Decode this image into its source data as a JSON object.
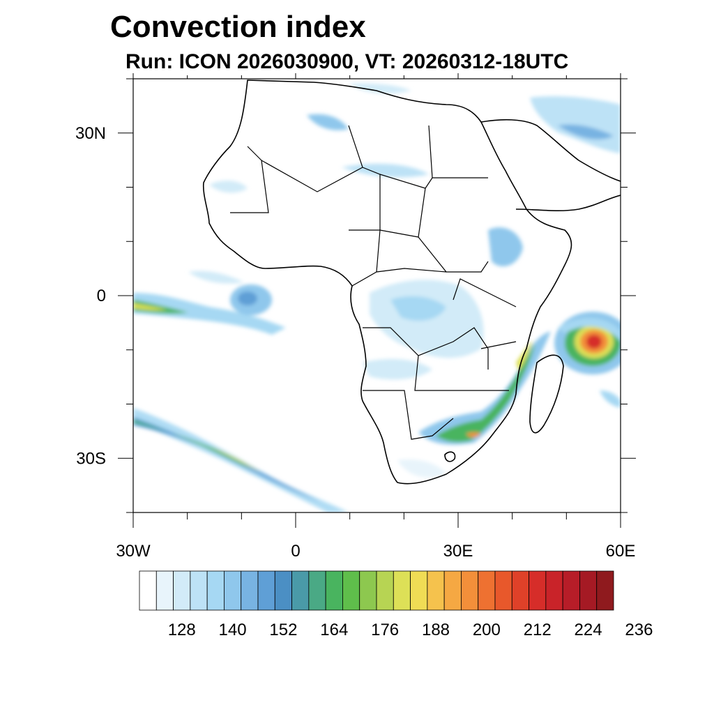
{
  "title": "Convection index",
  "subtitle": "Run: ICON 2026030900,  VT: 20260312-18UTC",
  "chart_data": {
    "type": "heatmap",
    "title": "Convection index",
    "subtitle": "Run: ICON 2026030900,  VT: 20260312-18UTC",
    "x_range": [
      -30,
      60
    ],
    "y_range": [
      -40,
      40
    ],
    "x_tick_labels": [
      {
        "value": -30,
        "label": "30W"
      },
      {
        "value": 0,
        "label": "0"
      },
      {
        "value": 30,
        "label": "30E"
      },
      {
        "value": 60,
        "label": "60E"
      }
    ],
    "y_tick_labels": [
      {
        "value": 30,
        "label": "30N"
      },
      {
        "value": 0,
        "label": "0"
      },
      {
        "value": -30,
        "label": "30S"
      }
    ],
    "colorbar": {
      "labels": [
        "128",
        "140",
        "152",
        "164",
        "176",
        "188",
        "200",
        "212",
        "224",
        "236"
      ],
      "colors": [
        "#ffffff",
        "#e8f4fb",
        "#d2ebf8",
        "#bde2f6",
        "#a6d8f3",
        "#8fc7ec",
        "#78b3e2",
        "#5f9fd6",
        "#4b8fc4",
        "#4a9aa8",
        "#4aa985",
        "#49b45f",
        "#5fbe4b",
        "#8dc84f",
        "#b7d453",
        "#dde057",
        "#f0dc55",
        "#f5c24d",
        "#f5a843",
        "#f38f3a",
        "#ee7131",
        "#e8582b",
        "#df4129",
        "#d62d29",
        "#c92329",
        "#b71d28",
        "#a51a24",
        "#8f1a1e"
      ]
    },
    "features": [
      {
        "name": "convection-band-southwest-atlantic",
        "lons": [
          -30,
          -10,
          10
        ],
        "lats": [
          -23,
          -30,
          -40
        ],
        "max_value": 188
      },
      {
        "name": "convection-band-equatorial-atlantic",
        "lons": [
          -30,
          -18,
          -8
        ],
        "lats": [
          -1,
          -4,
          -2
        ],
        "max_value": 180
      },
      {
        "name": "cyclone-mozambique-channel",
        "lons": [
          54
        ],
        "lats": [
          -9
        ],
        "max_value": 236
      },
      {
        "name": "convection-southeast-africa",
        "lons": [
          25,
          33,
          44
        ],
        "lats": [
          -25,
          -22,
          -11
        ],
        "max_value": 206
      }
    ]
  }
}
